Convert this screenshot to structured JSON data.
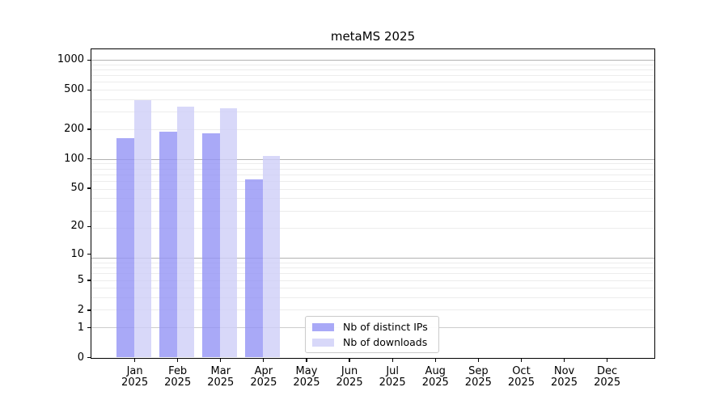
{
  "chart_data": {
    "type": "bar",
    "title": "metaMS 2025",
    "categories": [
      "Jan 2025",
      "Feb 2025",
      "Mar 2025",
      "Apr 2025",
      "May 2025",
      "Jun 2025",
      "Jul 2025",
      "Aug 2025",
      "Sep 2025",
      "Oct 2025",
      "Nov 2025",
      "Dec 2025"
    ],
    "series": [
      {
        "name": "Nb of distinct IPs",
        "color": "rgba(148,148,245,0.8)",
        "values": [
          160,
          188,
          180,
          61,
          0,
          0,
          0,
          0,
          0,
          0,
          0,
          0
        ]
      },
      {
        "name": "Nb of downloads",
        "color": "rgba(206,206,248,0.8)",
        "values": [
          390,
          336,
          325,
          106,
          0,
          0,
          0,
          0,
          0,
          0,
          0,
          0
        ]
      }
    ],
    "yscale": "log(1+value)",
    "y_ticks": [
      0,
      1,
      2,
      5,
      10,
      20,
      50,
      100,
      200,
      500,
      1000
    ],
    "y_axis_top_value": 1275,
    "legend_position": "lower center",
    "grid": {
      "major_t": [
        10,
        100,
        1000
      ],
      "mid_t": [
        2
      ],
      "minor_t": [
        3,
        4,
        5,
        6,
        7,
        8,
        9,
        20,
        30,
        40,
        50,
        60,
        70,
        80,
        90,
        200,
        300,
        400,
        500,
        600,
        700,
        800,
        900
      ],
      "major_color": "#b2b2b2",
      "mid_color": "#cccccc",
      "minor_color": "#ececec"
    }
  }
}
